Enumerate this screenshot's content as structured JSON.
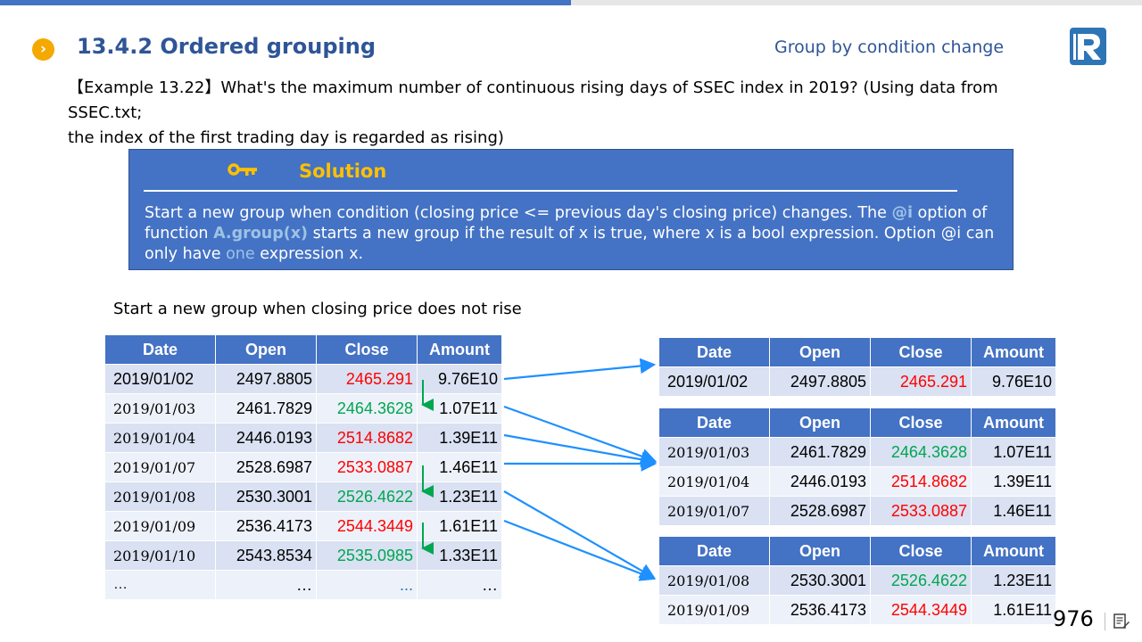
{
  "header": {
    "title": "13.4.2 Ordered grouping",
    "subtitle": "Group by condition change"
  },
  "example": {
    "line1": "【Example 13.22】What's the maximum number of continuous rising days of SSEC index in 2019? (Using data from SSEC.txt;",
    "line2": "the index of the first trading day is regarded as rising)"
  },
  "solution": {
    "title": "Solution",
    "part1": "Start a new group when condition (closing price <= previous day's closing price) changes. The ",
    "opt_i": "@i",
    "part2": " option of function ",
    "func": "A.group(x)",
    "part3": " starts a new group if the result of x is true, where x is a bool expression. Option @i can only have ",
    "one": "one",
    "part4": " expression x."
  },
  "caption": "Start a new group when closing price does not rise",
  "columns": [
    "Date",
    "Open",
    "Close",
    "Amount"
  ],
  "source_rows": [
    {
      "date": "2019/01/02",
      "open": "2497.8805",
      "close": "2465.291",
      "amount": "9.76E10",
      "close_color": "red"
    },
    {
      "date": "2019/01/03",
      "open": "2461.7829",
      "close": "2464.3628",
      "amount": "1.07E11",
      "close_color": "green"
    },
    {
      "date": "2019/01/04",
      "open": "2446.0193",
      "close": "2514.8682",
      "amount": "1.39E11",
      "close_color": "red"
    },
    {
      "date": "2019/01/07",
      "open": "2528.6987",
      "close": "2533.0887",
      "amount": "1.46E11",
      "close_color": "red"
    },
    {
      "date": "2019/01/08",
      "open": "2530.3001",
      "close": "2526.4622",
      "amount": "1.23E11",
      "close_color": "green"
    },
    {
      "date": "2019/01/09",
      "open": "2536.4173",
      "close": "2544.3449",
      "amount": "1.61E11",
      "close_color": "red"
    },
    {
      "date": "2019/01/10",
      "open": "2543.8534",
      "close": "2535.0985",
      "amount": "1.33E11",
      "close_color": "green"
    }
  ],
  "ellipsis": "…",
  "ellipsis_blue": "...",
  "groups": [
    [
      {
        "date": "2019/01/02",
        "open": "2497.8805",
        "close": "2465.291",
        "amount": "9.76E10",
        "close_color": "red"
      }
    ],
    [
      {
        "date": "2019/01/03",
        "open": "2461.7829",
        "close": "2464.3628",
        "amount": "1.07E11",
        "close_color": "green"
      },
      {
        "date": "2019/01/04",
        "open": "2446.0193",
        "close": "2514.8682",
        "amount": "1.39E11",
        "close_color": "red"
      },
      {
        "date": "2019/01/07",
        "open": "2528.6987",
        "close": "2533.0887",
        "amount": "1.46E11",
        "close_color": "red"
      }
    ],
    [
      {
        "date": "2019/01/08",
        "open": "2530.3001",
        "close": "2526.4622",
        "amount": "1.23E11",
        "close_color": "green"
      },
      {
        "date": "2019/01/09",
        "open": "2536.4173",
        "close": "2544.3449",
        "amount": "1.61E11",
        "close_color": "red"
      }
    ]
  ],
  "page_number": "976",
  "colors": {
    "accent": "#4472c4",
    "title": "#2f5597",
    "solution_title": "#ffc000",
    "rise": "#ff0000",
    "fall": "#00a650",
    "arrow": "#1e90ff"
  }
}
